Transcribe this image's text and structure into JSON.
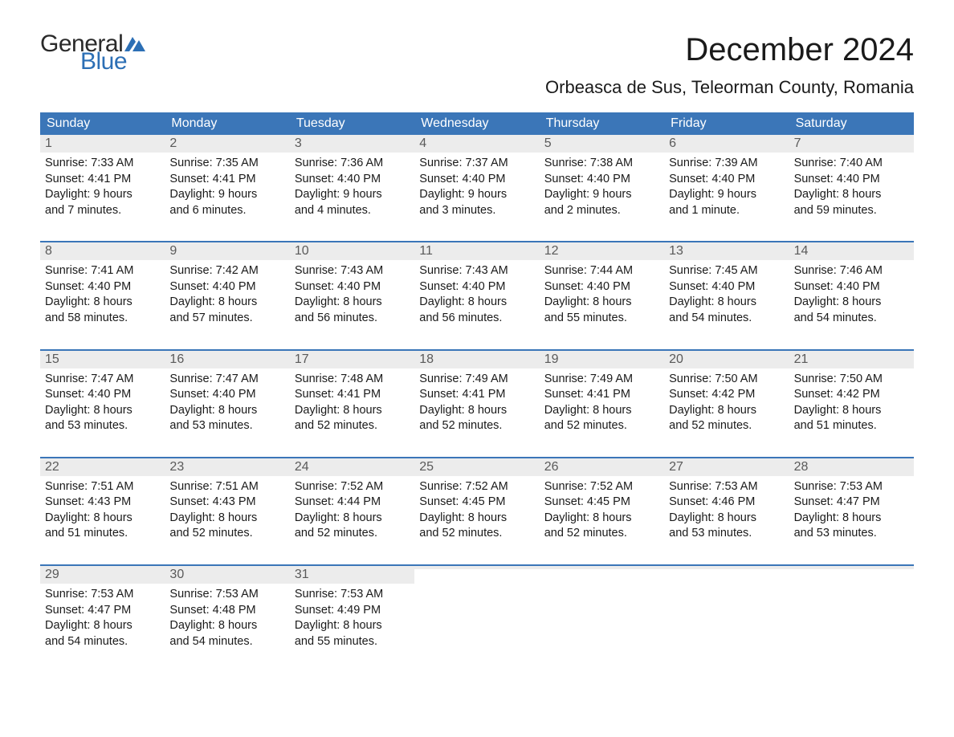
{
  "logo": {
    "text1": "General",
    "text2": "Blue"
  },
  "title": "December 2024",
  "subtitle": "Orbeasca de Sus, Teleorman County, Romania",
  "colors": {
    "header_bg": "#3b76b8",
    "header_fg": "#ffffff",
    "week_rule": "#3b76b8",
    "daynum_bg": "#ececec",
    "daynum_fg": "#5a5a5a",
    "body_fg": "#1a1a1a",
    "logo_blue": "#2c6fb5"
  },
  "days_of_week": [
    "Sunday",
    "Monday",
    "Tuesday",
    "Wednesday",
    "Thursday",
    "Friday",
    "Saturday"
  ],
  "weeks": [
    [
      {
        "n": "1",
        "sunrise": "Sunrise: 7:33 AM",
        "sunset": "Sunset: 4:41 PM",
        "d1": "Daylight: 9 hours",
        "d2": "and 7 minutes."
      },
      {
        "n": "2",
        "sunrise": "Sunrise: 7:35 AM",
        "sunset": "Sunset: 4:41 PM",
        "d1": "Daylight: 9 hours",
        "d2": "and 6 minutes."
      },
      {
        "n": "3",
        "sunrise": "Sunrise: 7:36 AM",
        "sunset": "Sunset: 4:40 PM",
        "d1": "Daylight: 9 hours",
        "d2": "and 4 minutes."
      },
      {
        "n": "4",
        "sunrise": "Sunrise: 7:37 AM",
        "sunset": "Sunset: 4:40 PM",
        "d1": "Daylight: 9 hours",
        "d2": "and 3 minutes."
      },
      {
        "n": "5",
        "sunrise": "Sunrise: 7:38 AM",
        "sunset": "Sunset: 4:40 PM",
        "d1": "Daylight: 9 hours",
        "d2": "and 2 minutes."
      },
      {
        "n": "6",
        "sunrise": "Sunrise: 7:39 AM",
        "sunset": "Sunset: 4:40 PM",
        "d1": "Daylight: 9 hours",
        "d2": "and 1 minute."
      },
      {
        "n": "7",
        "sunrise": "Sunrise: 7:40 AM",
        "sunset": "Sunset: 4:40 PM",
        "d1": "Daylight: 8 hours",
        "d2": "and 59 minutes."
      }
    ],
    [
      {
        "n": "8",
        "sunrise": "Sunrise: 7:41 AM",
        "sunset": "Sunset: 4:40 PM",
        "d1": "Daylight: 8 hours",
        "d2": "and 58 minutes."
      },
      {
        "n": "9",
        "sunrise": "Sunrise: 7:42 AM",
        "sunset": "Sunset: 4:40 PM",
        "d1": "Daylight: 8 hours",
        "d2": "and 57 minutes."
      },
      {
        "n": "10",
        "sunrise": "Sunrise: 7:43 AM",
        "sunset": "Sunset: 4:40 PM",
        "d1": "Daylight: 8 hours",
        "d2": "and 56 minutes."
      },
      {
        "n": "11",
        "sunrise": "Sunrise: 7:43 AM",
        "sunset": "Sunset: 4:40 PM",
        "d1": "Daylight: 8 hours",
        "d2": "and 56 minutes."
      },
      {
        "n": "12",
        "sunrise": "Sunrise: 7:44 AM",
        "sunset": "Sunset: 4:40 PM",
        "d1": "Daylight: 8 hours",
        "d2": "and 55 minutes."
      },
      {
        "n": "13",
        "sunrise": "Sunrise: 7:45 AM",
        "sunset": "Sunset: 4:40 PM",
        "d1": "Daylight: 8 hours",
        "d2": "and 54 minutes."
      },
      {
        "n": "14",
        "sunrise": "Sunrise: 7:46 AM",
        "sunset": "Sunset: 4:40 PM",
        "d1": "Daylight: 8 hours",
        "d2": "and 54 minutes."
      }
    ],
    [
      {
        "n": "15",
        "sunrise": "Sunrise: 7:47 AM",
        "sunset": "Sunset: 4:40 PM",
        "d1": "Daylight: 8 hours",
        "d2": "and 53 minutes."
      },
      {
        "n": "16",
        "sunrise": "Sunrise: 7:47 AM",
        "sunset": "Sunset: 4:40 PM",
        "d1": "Daylight: 8 hours",
        "d2": "and 53 minutes."
      },
      {
        "n": "17",
        "sunrise": "Sunrise: 7:48 AM",
        "sunset": "Sunset: 4:41 PM",
        "d1": "Daylight: 8 hours",
        "d2": "and 52 minutes."
      },
      {
        "n": "18",
        "sunrise": "Sunrise: 7:49 AM",
        "sunset": "Sunset: 4:41 PM",
        "d1": "Daylight: 8 hours",
        "d2": "and 52 minutes."
      },
      {
        "n": "19",
        "sunrise": "Sunrise: 7:49 AM",
        "sunset": "Sunset: 4:41 PM",
        "d1": "Daylight: 8 hours",
        "d2": "and 52 minutes."
      },
      {
        "n": "20",
        "sunrise": "Sunrise: 7:50 AM",
        "sunset": "Sunset: 4:42 PM",
        "d1": "Daylight: 8 hours",
        "d2": "and 52 minutes."
      },
      {
        "n": "21",
        "sunrise": "Sunrise: 7:50 AM",
        "sunset": "Sunset: 4:42 PM",
        "d1": "Daylight: 8 hours",
        "d2": "and 51 minutes."
      }
    ],
    [
      {
        "n": "22",
        "sunrise": "Sunrise: 7:51 AM",
        "sunset": "Sunset: 4:43 PM",
        "d1": "Daylight: 8 hours",
        "d2": "and 51 minutes."
      },
      {
        "n": "23",
        "sunrise": "Sunrise: 7:51 AM",
        "sunset": "Sunset: 4:43 PM",
        "d1": "Daylight: 8 hours",
        "d2": "and 52 minutes."
      },
      {
        "n": "24",
        "sunrise": "Sunrise: 7:52 AM",
        "sunset": "Sunset: 4:44 PM",
        "d1": "Daylight: 8 hours",
        "d2": "and 52 minutes."
      },
      {
        "n": "25",
        "sunrise": "Sunrise: 7:52 AM",
        "sunset": "Sunset: 4:45 PM",
        "d1": "Daylight: 8 hours",
        "d2": "and 52 minutes."
      },
      {
        "n": "26",
        "sunrise": "Sunrise: 7:52 AM",
        "sunset": "Sunset: 4:45 PM",
        "d1": "Daylight: 8 hours",
        "d2": "and 52 minutes."
      },
      {
        "n": "27",
        "sunrise": "Sunrise: 7:53 AM",
        "sunset": "Sunset: 4:46 PM",
        "d1": "Daylight: 8 hours",
        "d2": "and 53 minutes."
      },
      {
        "n": "28",
        "sunrise": "Sunrise: 7:53 AM",
        "sunset": "Sunset: 4:47 PM",
        "d1": "Daylight: 8 hours",
        "d2": "and 53 minutes."
      }
    ],
    [
      {
        "n": "29",
        "sunrise": "Sunrise: 7:53 AM",
        "sunset": "Sunset: 4:47 PM",
        "d1": "Daylight: 8 hours",
        "d2": "and 54 minutes."
      },
      {
        "n": "30",
        "sunrise": "Sunrise: 7:53 AM",
        "sunset": "Sunset: 4:48 PM",
        "d1": "Daylight: 8 hours",
        "d2": "and 54 minutes."
      },
      {
        "n": "31",
        "sunrise": "Sunrise: 7:53 AM",
        "sunset": "Sunset: 4:49 PM",
        "d1": "Daylight: 8 hours",
        "d2": "and 55 minutes."
      },
      {
        "empty": true
      },
      {
        "empty": true
      },
      {
        "empty": true
      },
      {
        "empty": true
      }
    ]
  ]
}
